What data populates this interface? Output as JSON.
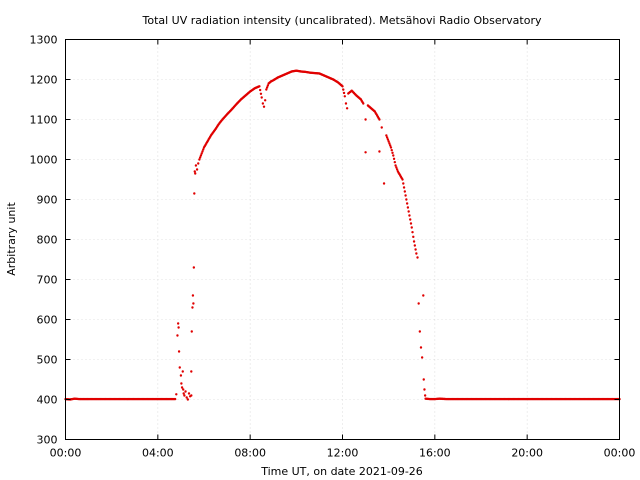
{
  "chart_data": {
    "type": "scatter",
    "title": "Total UV radiation intensity (uncalibrated). Metsähovi Radio Observatory",
    "xlabel": "Time UT, on date 2021-09-26",
    "ylabel": "Arbitrary unit",
    "xlim": [
      0,
      24
    ],
    "ylim": [
      300,
      1300
    ],
    "x_unit": "hours UT",
    "x_ticks": [
      0,
      4,
      8,
      12,
      16,
      20,
      24
    ],
    "x_tick_labels": [
      "00:00",
      "04:00",
      "08:00",
      "12:00",
      "16:00",
      "20:00",
      "00:00"
    ],
    "y_ticks": [
      300,
      400,
      500,
      600,
      700,
      800,
      900,
      1000,
      1100,
      1200,
      1300
    ],
    "y_tick_labels": [
      "300",
      "400",
      "500",
      "600",
      "700",
      "800",
      "900",
      "1000",
      "1100",
      "1200",
      "1300"
    ],
    "grid": true,
    "marker_color": "#e00000",
    "series": [
      {
        "points": [
          [
            0.0,
            401
          ],
          [
            0.2,
            400
          ],
          [
            0.4,
            402
          ],
          [
            0.6,
            401
          ],
          [
            0.8,
            401
          ],
          [
            1.0,
            401
          ],
          [
            1.5,
            401
          ],
          [
            2.0,
            401
          ],
          [
            2.5,
            401
          ],
          [
            3.0,
            401
          ],
          [
            3.5,
            401
          ],
          [
            4.0,
            401
          ],
          [
            4.5,
            401
          ],
          [
            4.75,
            401
          ],
          [
            4.8,
            413
          ],
          [
            4.85,
            560
          ],
          [
            4.88,
            590
          ],
          [
            4.9,
            580
          ],
          [
            4.92,
            520
          ],
          [
            4.95,
            480
          ],
          [
            5.0,
            460
          ],
          [
            5.02,
            440
          ],
          [
            5.05,
            430
          ],
          [
            5.08,
            470
          ],
          [
            5.1,
            425
          ],
          [
            5.12,
            415
          ],
          [
            5.15,
            410
          ],
          [
            5.2,
            420
          ],
          [
            5.25,
            405
          ],
          [
            5.3,
            400
          ],
          [
            5.35,
            415
          ],
          [
            5.4,
            408
          ],
          [
            5.45,
            410
          ],
          [
            5.45,
            470
          ],
          [
            5.47,
            570
          ],
          [
            5.5,
            630
          ],
          [
            5.52,
            660
          ],
          [
            5.54,
            640
          ],
          [
            5.56,
            730
          ],
          [
            5.58,
            915
          ],
          [
            5.6,
            970
          ],
          [
            5.62,
            965
          ],
          [
            5.65,
            985
          ],
          [
            5.7,
            975
          ],
          [
            5.75,
            990
          ],
          [
            5.8,
            1000
          ],
          [
            5.9,
            1015
          ],
          [
            6.0,
            1030
          ],
          [
            6.1,
            1040
          ],
          [
            6.2,
            1050
          ],
          [
            6.3,
            1060
          ],
          [
            6.4,
            1068
          ],
          [
            6.5,
            1076
          ],
          [
            6.6,
            1085
          ],
          [
            6.7,
            1093
          ],
          [
            6.8,
            1100
          ],
          [
            7.0,
            1113
          ],
          [
            7.2,
            1125
          ],
          [
            7.4,
            1138
          ],
          [
            7.6,
            1150
          ],
          [
            7.8,
            1160
          ],
          [
            8.0,
            1170
          ],
          [
            8.2,
            1178
          ],
          [
            8.4,
            1183
          ],
          [
            8.5,
            1155
          ],
          [
            8.55,
            1140
          ],
          [
            8.6,
            1132
          ],
          [
            8.65,
            1148
          ],
          [
            8.7,
            1175
          ],
          [
            8.8,
            1190
          ],
          [
            8.9,
            1195
          ],
          [
            9.0,
            1198
          ],
          [
            9.2,
            1205
          ],
          [
            9.4,
            1210
          ],
          [
            9.6,
            1215
          ],
          [
            9.8,
            1220
          ],
          [
            10.0,
            1222
          ],
          [
            10.2,
            1220
          ],
          [
            10.4,
            1219
          ],
          [
            10.6,
            1217
          ],
          [
            10.8,
            1216
          ],
          [
            11.0,
            1215
          ],
          [
            11.2,
            1210
          ],
          [
            11.4,
            1205
          ],
          [
            11.6,
            1200
          ],
          [
            11.8,
            1193
          ],
          [
            12.0,
            1183
          ],
          [
            12.1,
            1158
          ],
          [
            12.15,
            1140
          ],
          [
            12.2,
            1128
          ],
          [
            12.25,
            1165
          ],
          [
            12.4,
            1172
          ],
          [
            12.6,
            1160
          ],
          [
            12.8,
            1150
          ],
          [
            12.9,
            1140
          ],
          [
            13.0,
            1100
          ],
          [
            13.0,
            1018
          ],
          [
            13.1,
            1135
          ],
          [
            13.2,
            1130
          ],
          [
            13.4,
            1120
          ],
          [
            13.5,
            1110
          ],
          [
            13.6,
            1100
          ],
          [
            13.6,
            1020
          ],
          [
            13.7,
            1080
          ],
          [
            13.8,
            940
          ],
          [
            13.9,
            1060
          ],
          [
            14.0,
            1045
          ],
          [
            14.1,
            1030
          ],
          [
            14.2,
            1010
          ],
          [
            14.3,
            985
          ],
          [
            14.4,
            970
          ],
          [
            14.5,
            960
          ],
          [
            14.6,
            950
          ],
          [
            14.7,
            920
          ],
          [
            14.8,
            890
          ],
          [
            14.9,
            860
          ],
          [
            15.0,
            830
          ],
          [
            15.1,
            795
          ],
          [
            15.2,
            765
          ],
          [
            15.25,
            755
          ],
          [
            15.3,
            640
          ],
          [
            15.35,
            570
          ],
          [
            15.4,
            530
          ],
          [
            15.45,
            505
          ],
          [
            15.5,
            660
          ],
          [
            15.52,
            450
          ],
          [
            15.55,
            425
          ],
          [
            15.58,
            410
          ],
          [
            15.6,
            402
          ],
          [
            15.8,
            401
          ],
          [
            16.0,
            401
          ],
          [
            16.2,
            402
          ],
          [
            16.5,
            401
          ],
          [
            17.0,
            401
          ],
          [
            17.5,
            401
          ],
          [
            18.0,
            401
          ],
          [
            18.5,
            401
          ],
          [
            19.0,
            401
          ],
          [
            19.5,
            401
          ],
          [
            20.0,
            401
          ],
          [
            20.5,
            401
          ],
          [
            21.0,
            401
          ],
          [
            21.5,
            401
          ],
          [
            22.0,
            401
          ],
          [
            22.5,
            401
          ],
          [
            23.0,
            401
          ],
          [
            23.5,
            401
          ],
          [
            24.0,
            401
          ]
        ]
      }
    ]
  }
}
